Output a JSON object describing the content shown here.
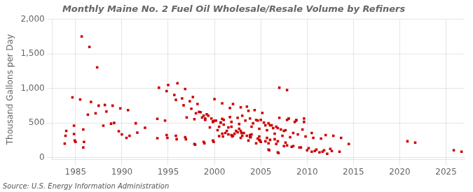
{
  "chart_data": {
    "type": "scatter",
    "title": "Monthly Maine No. 2 Fuel Oil Wholesale/Resale Volume by Refiners",
    "ylabel": "Thousand Gallons per Day",
    "annotations": [
      "Source: U.S. Energy Information Administration"
    ],
    "color": "#cc0000",
    "marker": "square",
    "grid": true,
    "xlim": [
      1982.5,
      2027
    ],
    "xticks": [
      1985,
      1990,
      1995,
      2000,
      2005,
      2010,
      2015,
      2020,
      2025
    ],
    "ylim": [
      -30,
      2000
    ],
    "yticks": [
      0,
      500,
      {
        "value": 1000,
        "label": "1,000"
      },
      {
        "value": 1500,
        "label": "1,500"
      },
      {
        "value": 2000,
        "label": "2,000"
      }
    ],
    "x": [
      1984.666667,
      1985.5,
      1986.333333,
      1987.166667,
      1988,
      1988.833333,
      1989.666667,
      1990.5,
      1983.833333,
      1983.916667,
      1984,
      1984.833333,
      1985.666667,
      1986.5,
      1987.333333,
      1988.166667,
      1989,
      1989.833333,
      1990.666667,
      1991.5,
      1984.833333,
      1984.916667,
      1985,
      1985.833333,
      1986.666667,
      1987.5,
      1988.333333,
      1989.166667,
      1990,
      1990.833333,
      1991.666667,
      1992.5,
      1985.833333,
      1985.916667,
      1993.833333,
      1994.666667,
      2000.5,
      1993.833333,
      1994,
      1994.833333,
      1995.666667,
      1996.5,
      1997.333333,
      1998.166667,
      1999,
      1999.833333,
      2000.666667,
      2001.5,
      1994.833333,
      1994.916667,
      1995,
      1995.833333,
      1996.666667,
      1997.5,
      1998.333333,
      1999.166667,
      2000,
      2000.833333,
      2001.666667,
      2002.5,
      1995.833333,
      1995.916667,
      1996,
      1996.833333,
      1997.666667,
      1998.5,
      1999.333333,
      2000.166667,
      2001,
      2001.833333,
      2002.666667,
      2003.5,
      1996.833333,
      1996.916667,
      1997,
      1997.833333,
      1998.666667,
      1999.5,
      2000.333333,
      2001.166667,
      2002,
      2002.833333,
      2003.666667,
      2004.5,
      1997.833333,
      1997.916667,
      1998,
      1998.833333,
      1999.666667,
      2000.5,
      2001.333333,
      2002.166667,
      2003,
      2003.833333,
      2004.666667,
      2005.5,
      1998.833333,
      1998.916667,
      1999,
      1999.833333,
      2000.666667,
      2001.5,
      2002.333333,
      2003.166667,
      2004,
      2004.833333,
      2005.666667,
      2006.5,
      1999.833333,
      1999.916667,
      2000,
      2000.833333,
      2001.666667,
      2002.5,
      2003.333333,
      2004.166667,
      2005,
      2005.833333,
      2006.666667,
      2007.5,
      2000.833333,
      2000.916667,
      2001,
      2001.833333,
      2002.666667,
      2003.5,
      2004.333333,
      2005.166667,
      2006,
      2006.833333,
      2007.666667,
      2008.5,
      2001.833333,
      2001.916667,
      2002,
      2002.833333,
      2003.666667,
      2004.5,
      2005.333333,
      2006.166667,
      2007,
      2007.833333,
      2008.666667,
      2009.5,
      2002.833333,
      2002.916667,
      2003,
      2003.833333,
      2004.666667,
      2005.5,
      2006.333333,
      2007.166667,
      2008,
      2008.833333,
      2009.666667,
      2010.5,
      2003.833333,
      2003.916667,
      2004,
      2004.833333,
      2005.666667,
      2006.5,
      2007.333333,
      2008.166667,
      2009,
      2009.833333,
      2010.666667,
      2011.5,
      2004.833333,
      2004.916667,
      2005,
      2005.833333,
      2006.666667,
      2007.5,
      2008.333333,
      2009.166667,
      2010,
      2010.833333,
      2011.666667,
      2012.5,
      2005.833333,
      2005.916667,
      2006,
      2006.833333,
      2007.666667,
      2008.5,
      2009.333333,
      2010.166667,
      2011,
      2011.833333,
      2012.666667,
      2013.5,
      2006.833333,
      2006.916667,
      2007,
      2007.833333,
      2012,
      2012.833333,
      2013.666667,
      2014.5,
      2007.833333,
      2008,
      2008.833333,
      2009.666667,
      2010.5,
      2011.333333,
      2012.166667,
      2020.833333,
      2021.666667,
      2025.833333,
      2026.666667
    ],
    "values": [
      870,
      840,
      620,
      640,
      460,
      490,
      380,
      285,
      200,
      315,
      385,
      340,
      1750,
      1600,
      1305,
      760,
      750,
      710,
      685,
      495,
      460,
      245,
      225,
      145,
      805,
      750,
      665,
      500,
      335,
      315,
      360,
      430,
      405,
      225,
      560,
      535,
      310,
      280,
      1010,
      960,
      905,
      855,
      815,
      775,
      565,
      515,
      505,
      335,
      325,
      285,
      1050,
      835,
      755,
      705,
      660,
      625,
      535,
      560,
      585,
      365,
      315,
      265,
      1075,
      990,
      875,
      655,
      605,
      535,
      475,
      445,
      415,
      315,
      295,
      265,
      580,
      555,
      580,
      435,
      395,
      355,
      315,
      285,
      245,
      205,
      195,
      185,
      640,
      605,
      565,
      445,
      385,
      345,
      315,
      295,
      275,
      235,
      225,
      205,
      545,
      525,
      505,
      435,
      385,
      355,
      335,
      305,
      285,
      265,
      245,
      225,
      845,
      785,
      715,
      575,
      535,
      495,
      545,
      495,
      445,
      385,
      345,
      305,
      545,
      515,
      485,
      735,
      685,
      645,
      465,
      425,
      395,
      355,
      325,
      305,
      775,
      725,
      675,
      545,
      505,
      465,
      575,
      545,
      515,
      405,
      385,
      355,
      605,
      565,
      535,
      465,
      425,
      405,
      565,
      545,
      565,
      355,
      325,
      295,
      445,
      415,
      395,
      345,
      315,
      295,
      335,
      305,
      285,
      275,
      255,
      245,
      225,
      205,
      195,
      165,
      155,
      145,
      105,
      95,
      85,
      125,
      115,
      105,
      255,
      235,
      215,
      165,
      145,
      135,
      115,
      105,
      95,
      85,
      75,
      65,
      1010,
      975,
      325,
      315,
      285,
      195,
      175,
      565,
      535,
      515,
      85,
      75,
      55,
      235,
      215,
      105,
      85
    ]
  }
}
